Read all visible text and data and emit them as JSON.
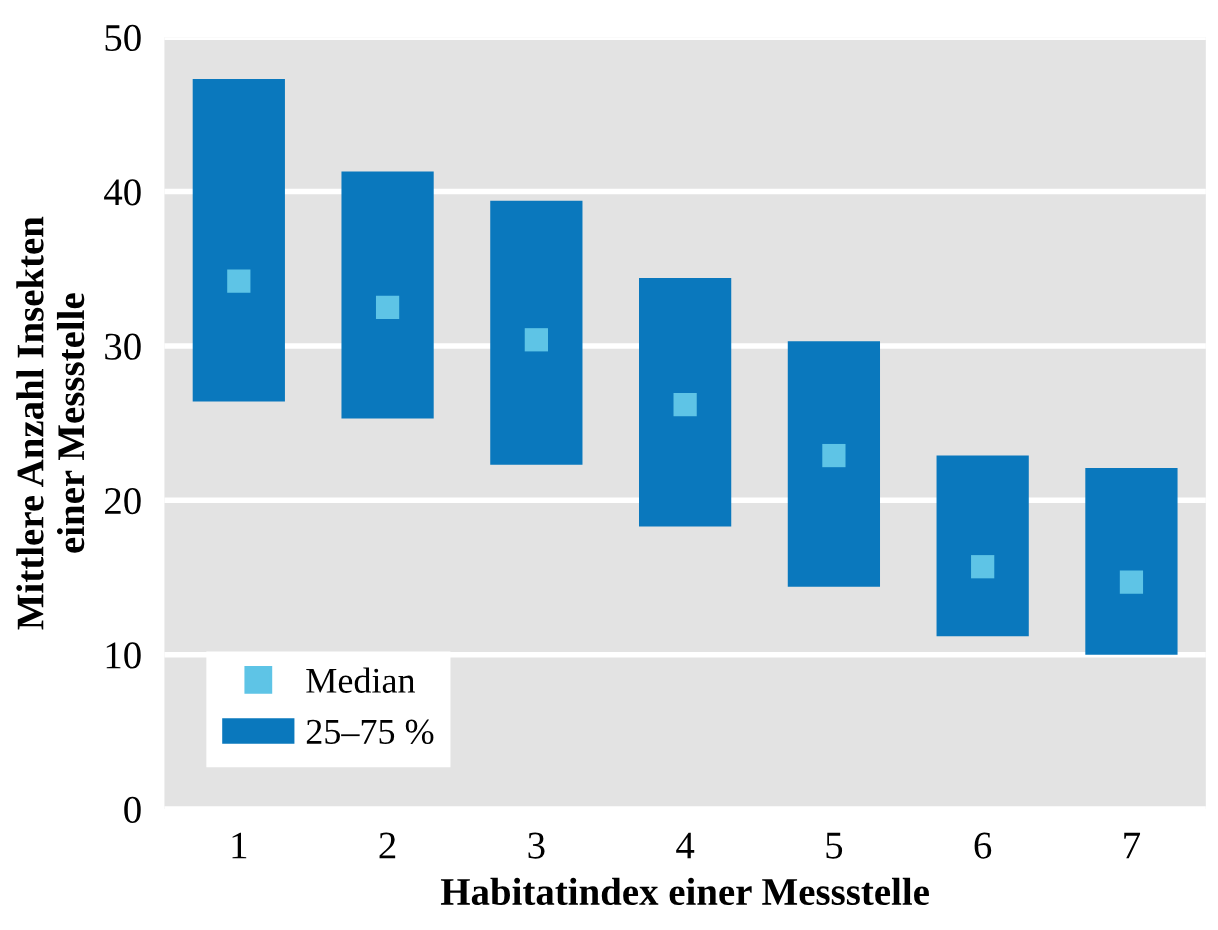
{
  "chart_data": {
    "type": "bar",
    "xlabel": "Habitatindex einer Messstelle",
    "ylabel": "Mittlere Anzahl Insekten\neiner Messstelle",
    "categories": [
      "1",
      "2",
      "3",
      "4",
      "5",
      "6",
      "7"
    ],
    "series": [
      {
        "name": "Median",
        "type": "scatter",
        "x": [
          "1",
          "2",
          "3",
          "4",
          "5",
          "6",
          "7"
        ],
        "color": "#5ec4e6",
        "values": [
          34.2,
          32.5,
          30.4,
          26.2,
          22.9,
          15.7,
          14.7
        ]
      },
      {
        "name": "25–75 %",
        "color": "#0a78bd",
        "base": [
          26.4,
          25.3,
          22.3,
          18.3,
          14.4,
          11.2,
          10.0
        ],
        "values": [
          20.9,
          16.0,
          17.1,
          16.1,
          15.9,
          11.7,
          12.1
        ]
      }
    ],
    "ylim": [
      0,
      50
    ],
    "yticks": [
      0,
      10,
      20,
      30,
      40,
      50
    ],
    "grid": "y",
    "legend": "bottom left",
    "marker": "square"
  }
}
